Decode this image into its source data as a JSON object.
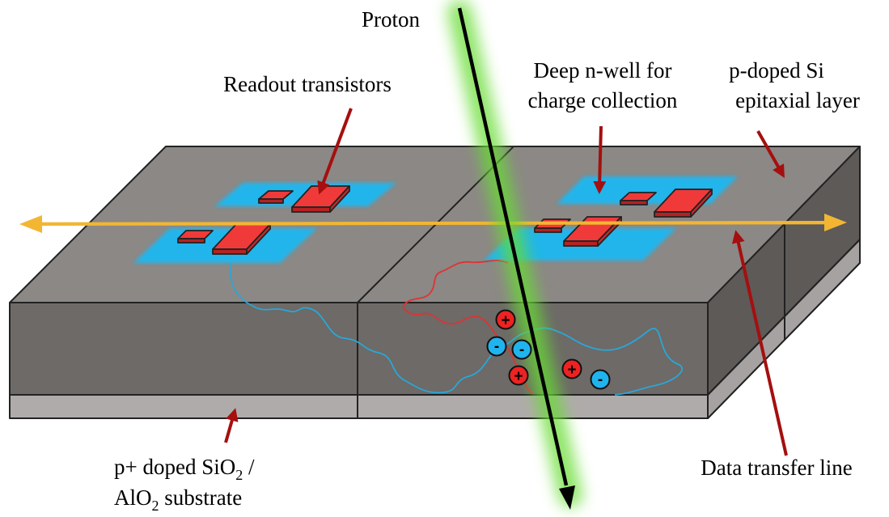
{
  "labels": {
    "proton": "Proton",
    "readout": "Readout transistors",
    "deep_nwell": [
      "Deep n-well for",
      "charge collection"
    ],
    "pdoped": [
      "p-doped Si",
      "epitaxial layer"
    ],
    "data_line": "Data transfer line",
    "substrate": {
      "line1_pre": "p+ doped SiO",
      "line1_sub": "2",
      "line1_post": " /",
      "line2_pre": "AlO",
      "line2_sub": "2",
      "line2_post": " substrate"
    }
  },
  "charges": {
    "plus": "+",
    "minus": "-"
  },
  "colors": {
    "top_face": "#8c8885",
    "front_face": "#6d6a67",
    "right_face": "#5d5a58",
    "substrate": "#b0abab",
    "nwell": "#1fb8f2",
    "transistor": "#f03a3a",
    "arrow": "#a50f0f",
    "proton_glow": "#66dd33",
    "data_line": "#f2b632",
    "positive": "#ee2222",
    "negative": "#20b4ee"
  }
}
